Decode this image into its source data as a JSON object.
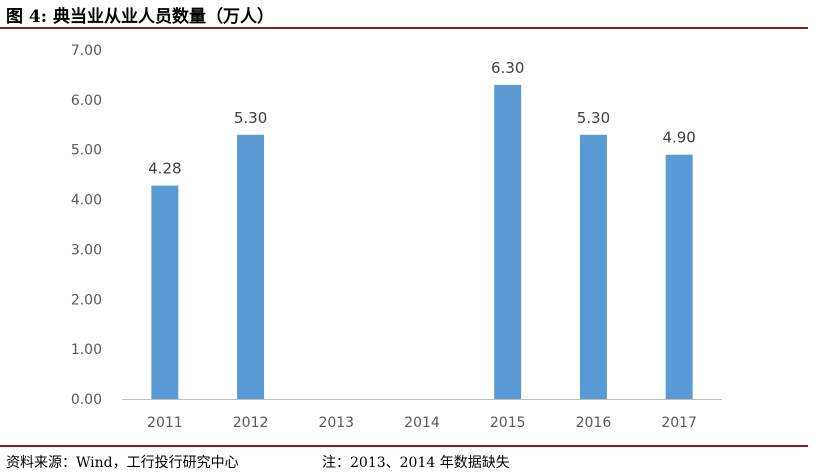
{
  "header": {
    "title": "图 4: 典当业从业人员数量（万人）"
  },
  "footer": {
    "source": "资料来源：Wind，工行投行研究中心",
    "note": "注：2013、2014 年数据缺失"
  },
  "colors": {
    "bar": "#5b9bd5",
    "rule": "#8b1a1a",
    "axis": "#bfbfbf"
  },
  "chart_data": {
    "type": "bar",
    "title": "",
    "xlabel": "",
    "ylabel": "",
    "categories": [
      "2011",
      "2012",
      "2013",
      "2014",
      "2015",
      "2016",
      "2017"
    ],
    "values": [
      4.28,
      5.3,
      null,
      null,
      6.3,
      5.3,
      4.9
    ],
    "value_labels": [
      "4.28",
      "5.30",
      "",
      "",
      "6.30",
      "5.30",
      "4.90"
    ],
    "ylim": [
      0,
      7
    ],
    "yticks": [
      "0.00",
      "1.00",
      "2.00",
      "3.00",
      "4.00",
      "5.00",
      "6.00",
      "7.00"
    ],
    "grid": false,
    "legend": "none"
  }
}
